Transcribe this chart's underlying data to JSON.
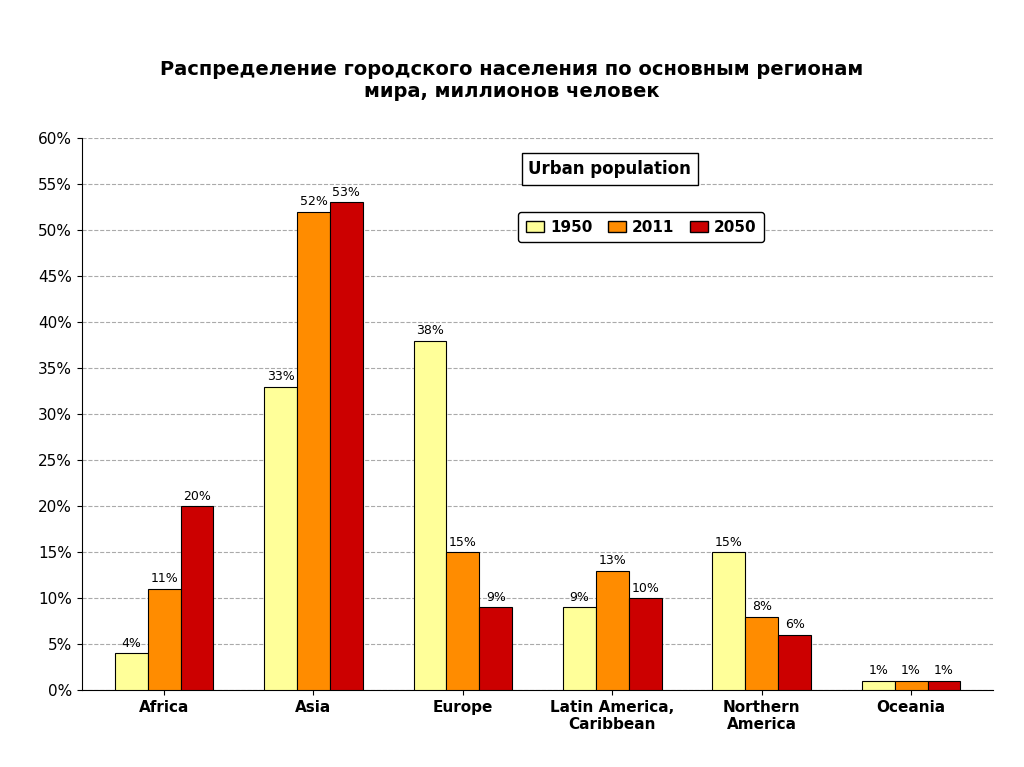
{
  "title": "Распределение городского населения по основным регионам\nмира, миллионов человек",
  "categories": [
    "Africa",
    "Asia",
    "Europe",
    "Latin America,\nCaribbean",
    "Northern\nAmerica",
    "Oceania"
  ],
  "years": [
    "1950",
    "2011",
    "2050"
  ],
  "values": {
    "1950": [
      4,
      33,
      38,
      9,
      15,
      1
    ],
    "2011": [
      11,
      52,
      15,
      13,
      8,
      1
    ],
    "2050": [
      20,
      53,
      9,
      10,
      6,
      1
    ]
  },
  "labels": {
    "1950": [
      "4%",
      "33%",
      "38%",
      "9%",
      "15%",
      "1%"
    ],
    "2011": [
      "11%",
      "52%",
      "15%",
      "13%",
      "8%",
      "1%"
    ],
    "2050": [
      "20%",
      "53%",
      "9%",
      "10%",
      "6%",
      "1%"
    ]
  },
  "colors": {
    "1950": "#FFFF99",
    "2011": "#FF8C00",
    "2050": "#CC0000"
  },
  "legend_title": "Urban population",
  "ylim": [
    0,
    60
  ],
  "yticks": [
    0,
    5,
    10,
    15,
    20,
    25,
    30,
    35,
    40,
    45,
    50,
    55,
    60
  ],
  "ytick_labels": [
    "0%",
    "5%",
    "10%",
    "15%",
    "20%",
    "25%",
    "30%",
    "35%",
    "40%",
    "45%",
    "50%",
    "55%",
    "60%"
  ],
  "title_bg_color": "#FFFF00",
  "title_border_color": "#00AA00",
  "background_color": "#FFFFFF",
  "bar_edge_color": "#000000",
  "grid_color": "#AAAAAA",
  "bar_width": 0.22
}
